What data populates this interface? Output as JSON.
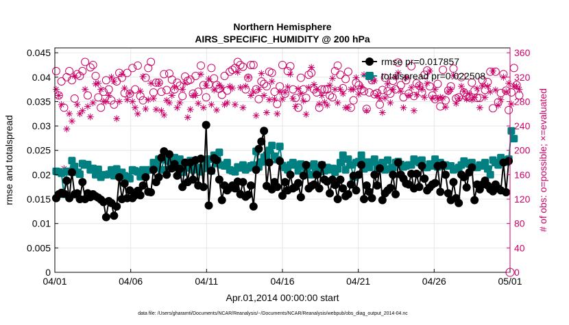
{
  "chart_data": {
    "type": "line",
    "title": "Northern Hemisphere",
    "subtitle": "AIRS_SPECIFIC_HUMIDITY @ 200 hPa",
    "xlabel": "Apr.01,2014 00:00:00 start",
    "ylabel": "rmse and totalspread",
    "ylabel_right": "# of obs: o=possible; ×=evaluated",
    "footnote": "data file: /Users/gharamti/Documents/NCAR/Reanalysis/~/Documents/NCAR/Reanalysis/webpub/obs_diag_output_2014-04.nc",
    "x_range_days": [
      0,
      30
    ],
    "x_ticks": [
      {
        "day": 0,
        "label": "04/01"
      },
      {
        "day": 5,
        "label": "04/06"
      },
      {
        "day": 10,
        "label": "04/11"
      },
      {
        "day": 15,
        "label": "04/16"
      },
      {
        "day": 20,
        "label": "04/21"
      },
      {
        "day": 25,
        "label": "04/26"
      },
      {
        "day": 30,
        "label": "05/01"
      }
    ],
    "ylim": [
      0,
      0.046
    ],
    "y_ticks": [
      "0",
      "0.005",
      "0.01",
      "0.015",
      "0.02",
      "0.025",
      "0.03",
      "0.035",
      "0.04",
      "0.045"
    ],
    "ylim_right": [
      0,
      368
    ],
    "y_ticks_right": [
      "0",
      "40",
      "80",
      "120",
      "160",
      "200",
      "240",
      "280",
      "320",
      "360"
    ],
    "legend_position": "top-right",
    "colors": {
      "rmse": "#000000",
      "spread": "#008080",
      "obs": "#cc0066",
      "grid": "#e6e6e6"
    },
    "series": [
      {
        "name": "rmse",
        "legend": "rmse pr=0.017857",
        "values": [
          0.0152,
          0.016,
          0.0163,
          0.0161,
          0.0188,
          0.0152,
          0.0205,
          0.016,
          0.0162,
          0.015,
          0.0185,
          0.015,
          0.0162,
          0.0154,
          0.016,
          0.0156,
          0.0153,
          0.0149,
          0.0144,
          0.0113,
          0.0146,
          0.0142,
          0.0116,
          0.0135,
          0.0195,
          0.015,
          0.0182,
          0.0152,
          0.0168,
          0.0152,
          0.0158,
          0.0167,
          0.0158,
          0.0178,
          0.0195,
          0.0165,
          0.0164,
          0.021,
          0.0185,
          0.0195,
          0.0235,
          0.0248,
          0.02,
          0.0242,
          0.0213,
          0.0222,
          0.0198,
          0.0212,
          0.0175,
          0.0225,
          0.0185,
          0.0225,
          0.019,
          0.023,
          0.0178,
          0.0233,
          0.0175,
          0.0302,
          0.0137,
          0.0208,
          0.0234,
          0.023,
          0.019,
          0.0148,
          0.0178,
          0.0168,
          0.0173,
          0.0178,
          0.0172,
          0.0186,
          0.016,
          0.0185,
          0.0155,
          0.0159,
          0.0178,
          0.0135,
          0.021,
          0.0253,
          0.0268,
          0.029,
          0.0177,
          0.0225,
          0.017,
          0.0185,
          0.0175,
          0.0228,
          0.0157,
          0.0185,
          0.0168,
          0.02,
          0.0172,
          0.0175,
          0.0183,
          0.0154,
          0.0198,
          0.022,
          0.0172,
          0.0177,
          0.018,
          0.02,
          0.0172,
          0.022,
          0.019,
          0.0186,
          0.0162,
          0.019,
          0.0179,
          0.015,
          0.019,
          0.0172,
          0.0156,
          0.016,
          0.018,
          0.0198,
          0.0168,
          0.02,
          0.022,
          0.015,
          0.0178,
          0.0165,
          0.0152,
          0.02,
          0.0178,
          0.0213,
          0.0148,
          0.0162,
          0.0168,
          0.0173,
          0.02,
          0.016,
          0.0225,
          0.02,
          0.0192,
          0.0182,
          0.018,
          0.0202,
          0.0172,
          0.0202,
          0.0175,
          0.0218,
          0.0192,
          0.0168,
          0.0174,
          0.018,
          0.0183,
          0.0218,
          0.0165,
          0.022,
          0.02,
          0.0162,
          0.0148,
          0.0185,
          0.0152,
          0.0142,
          0.02,
          0.0195,
          0.0174,
          0.0205,
          0.0215,
          0.0148,
          0.018,
          0.017,
          0.018,
          0.0188,
          0.0178,
          0.017,
          0.0166,
          0.018,
          0.0172,
          0.0168,
          0.0225,
          0.0164,
          0.0228
        ]
      },
      {
        "name": "totalspread",
        "legend": "totalspread pr=0.022508",
        "values": [
          0.0207,
          0.0206,
          0.0203,
          0.016,
          0.0207,
          0.0206,
          0.0229,
          0.0217,
          0.0205,
          0.0201,
          0.0223,
          0.022,
          0.0221,
          0.021,
          0.0213,
          0.02,
          0.0211,
          0.0195,
          0.02,
          0.02,
          0.0201,
          0.021,
          0.0198,
          0.0212,
          0.0198,
          0.0205,
          0.0198,
          0.0196,
          0.0192,
          0.021,
          0.0208,
          0.0206,
          0.0196,
          0.021,
          0.0204,
          0.021,
          0.021,
          0.0225,
          0.0218,
          0.0232,
          0.021,
          0.0231,
          0.021,
          0.0228,
          0.0215,
          0.0235,
          0.0217,
          0.0232,
          0.0205,
          0.0218,
          0.0214,
          0.0229,
          0.021,
          0.0215,
          0.0215,
          0.0206,
          0.0213,
          0.0222,
          0.0232,
          0.0208,
          0.024,
          0.0223,
          0.0246,
          0.022,
          0.0218,
          0.0225,
          0.021,
          0.0208,
          0.0206,
          0.0216,
          0.0214,
          0.022,
          0.021,
          0.0214,
          0.0218,
          0.022,
          0.0248,
          0.0216,
          0.0226,
          0.0236,
          0.024,
          0.025,
          0.026,
          0.0238,
          0.0231,
          0.0258,
          0.0219,
          0.0215,
          0.021,
          0.022,
          0.0225,
          0.022,
          0.0208,
          0.0222,
          0.0218,
          0.021,
          0.0218,
          0.02,
          0.0222,
          0.021,
          0.0206,
          0.022,
          0.0208,
          0.0215,
          0.021,
          0.0213,
          0.0205,
          0.0212,
          0.0225,
          0.024,
          0.021,
          0.0232,
          0.022,
          0.0195,
          0.0225,
          0.0227,
          0.024,
          0.0212,
          0.0226,
          0.0215,
          0.0226,
          0.0232,
          0.0212,
          0.022,
          0.0225,
          0.021,
          0.023,
          0.0212,
          0.0215,
          0.0225,
          0.0227,
          0.0221,
          0.0216,
          0.0218,
          0.022,
          0.022,
          0.0232,
          0.0228,
          0.0225,
          0.023,
          0.0215,
          0.0215,
          0.0222,
          0.0218,
          0.0232,
          0.0216,
          0.0225,
          0.0218,
          0.022,
          0.0218,
          0.0218,
          0.021,
          0.0212,
          0.0215,
          0.022,
          0.0228,
          0.0224,
          0.0222,
          0.0225,
          0.0215,
          0.0215,
          0.022,
          0.0218,
          0.0225,
          0.0212,
          0.02,
          0.023,
          0.0225,
          0.022,
          0.0235,
          0.023,
          0.0226,
          0.0232,
          0.029,
          0.0274
        ]
      },
      {
        "name": "obs_possible",
        "marker": "circle",
        "values": [
          330,
          290,
          313,
          270,
          320,
          330,
          315,
          285,
          325,
          322,
          330,
          345,
          290,
          336,
          340,
          322,
          287,
          270,
          296,
          315,
          300,
          282,
          275,
          313,
          327,
          319,
          294,
          327,
          293,
          335,
          300,
          339,
          289,
          282,
          319,
          335,
          345,
          295,
          311,
          311,
          296,
          325,
          299,
          326,
          316,
          300,
          311,
          306,
          289,
          321,
          314,
          316,
          293,
          322,
          296,
          339,
          307,
          287,
          308,
          335,
          318,
          307,
          301,
          291,
          322,
          298,
          329,
          332,
          335,
          345,
          340,
          337,
          300,
          319,
          340,
          340,
          300,
          284,
          313,
          309,
          305,
          329,
          327,
          296,
          276,
          305,
          340,
          293,
          330,
          338,
          300,
          286,
          270,
          319,
          300,
          286,
          324,
          327,
          300,
          295,
          270,
          300,
          300,
          300,
          290,
          287,
          330,
          339,
          324,
          302,
          317,
          329,
          270,
          282,
          311,
          307,
          300,
          297,
          268,
          295,
          315,
          292,
          294,
          275,
          299,
          319,
          297,
          293,
          314,
          300,
          344,
          307,
          287,
          315,
          293,
          338,
          289,
          310,
          306,
          295,
          324,
          331,
          305,
          290,
          284,
          309,
          272,
          332,
          282,
          298,
          305,
          334,
          285,
          287,
          320,
          295,
          288,
          287,
          311,
          298,
          286,
          286,
          315,
          299,
          312,
          329,
          269,
          329,
          279,
          294,
          325,
          298,
          266,
          295,
          335,
          307,
          290
        ]
      },
      {
        "name": "obs_evaluated",
        "marker": "star",
        "values": [
          300,
          290,
          275,
          170,
          235,
          260,
          248,
          322,
          275,
          260,
          265,
          300,
          272,
          255,
          278,
          309,
          310,
          300,
          280,
          280,
          290,
          320,
          313,
          252,
          280,
          325,
          302,
          283,
          294,
          280,
          270,
          260,
          297,
          321,
          268,
          283,
          310,
          285,
          267,
          310,
          265,
          258,
          282,
          278,
          290,
          303,
          270,
          278,
          300,
          310,
          254,
          267,
          290,
          290,
          277,
          325,
          270,
          307,
          317,
          275,
          299,
          266,
          307,
          303,
          275,
          278,
          305,
          302,
          275,
          328,
          303,
          270,
          305,
          320,
          290,
          296,
          257,
          300,
          326,
          290,
          262,
          283,
          313,
          284,
          260,
          296,
          284,
          295,
          304,
          325,
          285,
          272,
          301,
          293,
          281,
          259,
          303,
          336,
          308,
          300,
          276,
          290,
          279,
          274,
          307,
          318,
          300,
          278,
          300,
          293,
          270,
          270,
          300,
          300,
          319,
          292,
          304,
          324,
          265,
          322,
          316,
          314,
          290,
          285,
          262,
          286,
          309,
          278,
          300,
          320,
          327,
          297,
          270,
          319,
          290,
          303,
          265,
          291,
          305,
          300,
          287,
          310,
          330,
          286,
          300,
          285,
          287,
          286,
          271,
          296,
          300,
          323,
          277,
          285,
          305,
          297,
          284,
          293,
          283,
          287,
          301,
          270,
          306,
          287,
          305,
          296,
          330,
          299,
          274,
          283,
          320,
          296,
          310,
          276,
          305,
          305,
          300
        ]
      }
    ]
  }
}
